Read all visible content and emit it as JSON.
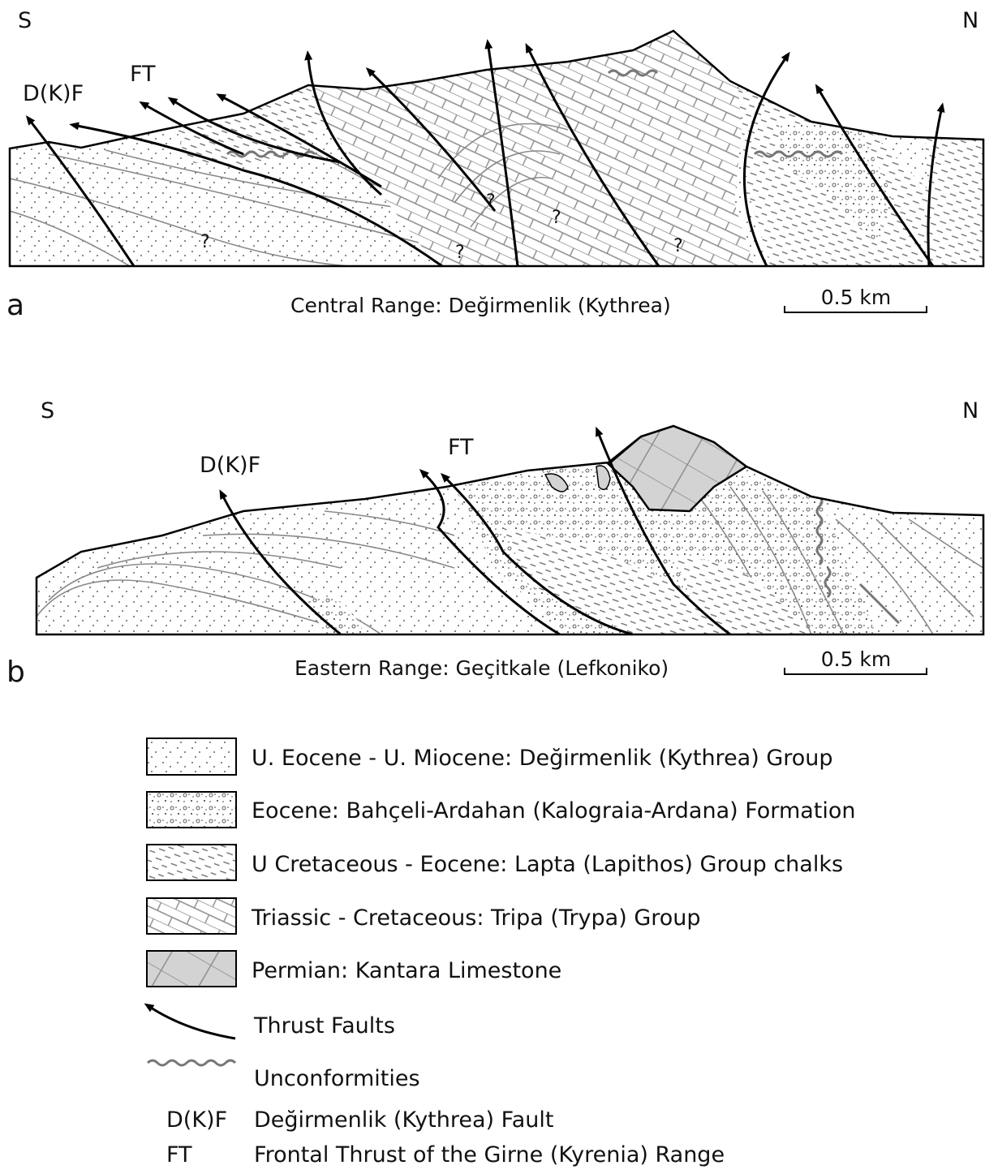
{
  "sections": [
    {
      "label": "a",
      "caption": "Central Range: Değirmenlik (Kythrea)",
      "scale": "0.5 km",
      "south": "S",
      "north": "N",
      "fault_labels": [
        "D(K)F",
        "FT"
      ],
      "question_marks": [
        "?",
        "?",
        "?",
        "?",
        "?"
      ]
    },
    {
      "label": "b",
      "caption": "Eastern Range: Geçitkale (Lefkoniko)",
      "scale": "0.5 km",
      "south": "S",
      "north": "N",
      "fault_labels": [
        "D(K)F",
        "FT"
      ]
    }
  ],
  "legend": {
    "units": [
      "U. Eocene - U. Miocene: Değirmenlik (Kythrea) Group",
      "Eocene: Bahçeli-Ardahan (Kalograia-Ardana) Formation",
      "U Cretaceous - Eocene: Lapta (Lapithos) Group chalks",
      "Triassic - Cretaceous: Tripa (Trypa) Group",
      "Permian: Kantara Limestone"
    ],
    "symbols": [
      "Thrust Faults",
      "Unconformities"
    ],
    "abbreviations": [
      {
        "abbr": "D(K)F",
        "text": "Değirmenlik (Kythrea) Fault"
      },
      {
        "abbr": "FT",
        "text": "Frontal Thrust of the Girne (Kyrenia) Range"
      }
    ]
  }
}
